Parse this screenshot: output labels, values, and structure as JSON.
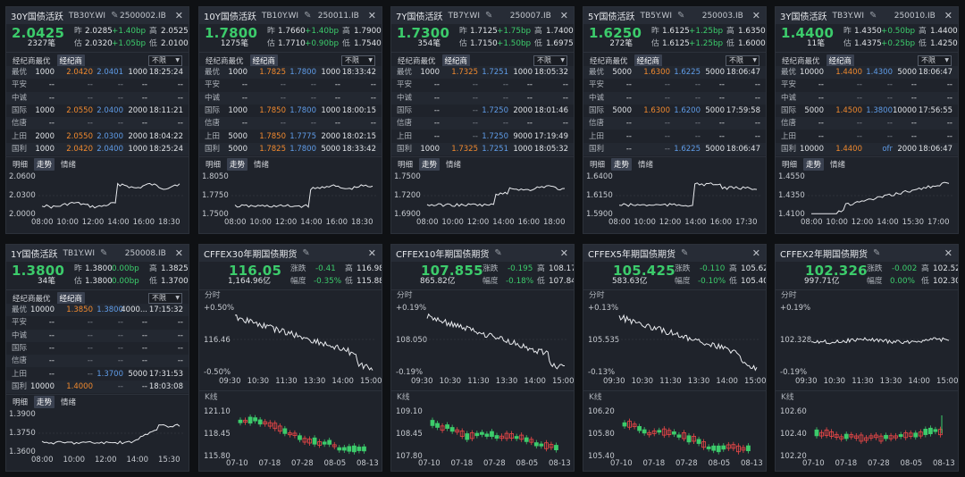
{
  "panels": [
    {
      "type": "bond",
      "name": "30Y国债活跃",
      "code": "TB30Y.WI",
      "ib": "2500002.IB",
      "price": "2.0425",
      "stats": [
        {
          "label": "昨",
          "value": "2.0285",
          "change": "+1.40bp",
          "hl": "高",
          "hv": "2.0525"
        },
        {
          "label": "",
          "value": "",
          "change": "",
          "hl": "",
          "hv": ""
        }
      ],
      "line2": {
        "count": "2327笔",
        "est_label": "估",
        "est": "2.0320",
        "chg": "+1.05bp",
        "low_label": "低",
        "low": "2.0100"
      },
      "broker_tabs": [
        "经纪商最优",
        "经纪商"
      ],
      "filter": "不限",
      "rows": [
        {
          "name": "最优",
          "v1": "1000",
          "p1": "2.0420",
          "p2": "2.0401",
          "v2": "1000",
          "time": "18:25:24",
          "c1": "o",
          "c2": "b"
        },
        {
          "name": "平安",
          "v1": "--",
          "p1": "--",
          "p2": "--",
          "v2": "--",
          "time": "--",
          "c1": "o",
          "c2": "b"
        },
        {
          "name": "中诚",
          "v1": "--",
          "p1": "--",
          "p2": "--",
          "v2": "--",
          "time": "--",
          "c1": "o",
          "c2": "b"
        },
        {
          "name": "国际",
          "v1": "1000",
          "p1": "2.0550",
          "p2": "2.0400",
          "v2": "2000",
          "time": "18:11:21",
          "c1": "o",
          "c2": "b"
        },
        {
          "name": "信唐",
          "v1": "--",
          "p1": "--",
          "p2": "--",
          "v2": "--",
          "time": "--",
          "c1": "o",
          "c2": "b"
        },
        {
          "name": "上田",
          "v1": "2000",
          "p1": "2.0550",
          "p2": "2.0300",
          "v2": "2000",
          "time": "18:04:22",
          "c1": "o",
          "c2": "b"
        },
        {
          "name": "国利",
          "v1": "1000",
          "p1": "2.0420",
          "p2": "2.0400",
          "v2": "1000",
          "time": "18:25:24",
          "c1": "o",
          "c2": "b"
        }
      ],
      "chart_tabs": [
        "明细",
        "走势",
        "情绪"
      ],
      "y_ticks": [
        "2.0600",
        "2.0300",
        "2.0000"
      ],
      "x_ticks": [
        "08:00",
        "10:00",
        "12:00",
        "14:00",
        "16:00",
        "18:30"
      ]
    },
    {
      "type": "bond",
      "name": "10Y国债活跃",
      "code": "TB10Y.WI",
      "ib": "250011.IB",
      "price": "1.7800",
      "stats": [
        {
          "label": "昨",
          "value": "1.7660",
          "change": "+1.40bp",
          "hl": "高",
          "hv": "1.7900"
        }
      ],
      "line2": {
        "count": "1275笔",
        "est_label": "估",
        "est": "1.7710",
        "chg": "+0.90bp",
        "low_label": "低",
        "low": "1.7540"
      },
      "broker_tabs": [
        "经纪商最优",
        "经纪商"
      ],
      "filter": "不限",
      "rows": [
        {
          "name": "最优",
          "v1": "1000",
          "p1": "1.7825",
          "p2": "1.7800",
          "v2": "1000",
          "time": "18:33:42"
        },
        {
          "name": "平安",
          "v1": "--",
          "p1": "--",
          "p2": "--",
          "v2": "--",
          "time": "--"
        },
        {
          "name": "中诚",
          "v1": "--",
          "p1": "--",
          "p2": "--",
          "v2": "--",
          "time": "--"
        },
        {
          "name": "国际",
          "v1": "1000",
          "p1": "1.7850",
          "p2": "1.7800",
          "v2": "1000",
          "time": "18:00:15"
        },
        {
          "name": "信唐",
          "v1": "--",
          "p1": "--",
          "p2": "--",
          "v2": "--",
          "time": "--"
        },
        {
          "name": "上田",
          "v1": "5000",
          "p1": "1.7850",
          "p2": "1.7775",
          "v2": "2000",
          "time": "18:02:15"
        },
        {
          "name": "国利",
          "v1": "5000",
          "p1": "1.7825",
          "p2": "1.7800",
          "v2": "5000",
          "time": "18:33:42"
        }
      ],
      "chart_tabs": [
        "明细",
        "走势",
        "情绪"
      ],
      "y_ticks": [
        "1.8050",
        "1.7750",
        "1.7500"
      ],
      "x_ticks": [
        "08:00",
        "10:00",
        "12:00",
        "14:00",
        "16:00",
        "18:30"
      ]
    },
    {
      "type": "bond",
      "name": "7Y国债活跃",
      "code": "TB7Y.WI",
      "ib": "250007.IB",
      "price": "1.7300",
      "stats": [
        {
          "label": "昨",
          "value": "1.7125",
          "change": "+1.75bp",
          "hl": "高",
          "hv": "1.7400"
        }
      ],
      "line2": {
        "count": "354笔",
        "est_label": "估",
        "est": "1.7150",
        "chg": "+1.50bp",
        "low_label": "低",
        "low": "1.6975"
      },
      "broker_tabs": [
        "经纪商最优",
        "经纪商"
      ],
      "filter": "不限",
      "rows": [
        {
          "name": "最优",
          "v1": "1000",
          "p1": "1.7325",
          "p2": "1.7251",
          "v2": "1000",
          "time": "18:05:32"
        },
        {
          "name": "平安",
          "v1": "--",
          "p1": "--",
          "p2": "--",
          "v2": "--",
          "time": "--"
        },
        {
          "name": "中诚",
          "v1": "--",
          "p1": "--",
          "p2": "--",
          "v2": "--",
          "time": "--"
        },
        {
          "name": "国际",
          "v1": "--",
          "p1": "--",
          "p2": "1.7250",
          "v2": "2000",
          "time": "18:01:46"
        },
        {
          "name": "信唐",
          "v1": "--",
          "p1": "--",
          "p2": "--",
          "v2": "--",
          "time": "--"
        },
        {
          "name": "上田",
          "v1": "--",
          "p1": "--",
          "p2": "1.7250",
          "v2": "9000",
          "time": "17:19:49"
        },
        {
          "name": "国利",
          "v1": "1000",
          "p1": "1.7325",
          "p2": "1.7251",
          "v2": "1000",
          "time": "18:05:32"
        }
      ],
      "chart_tabs": [
        "明细",
        "走势",
        "情绪"
      ],
      "y_ticks": [
        "1.7500",
        "1.7200",
        "1.6900"
      ],
      "x_ticks": [
        "08:00",
        "10:00",
        "12:00",
        "14:00",
        "16:00",
        "18:00"
      ]
    },
    {
      "type": "bond",
      "name": "5Y国债活跃",
      "code": "TB5Y.WI",
      "ib": "250003.IB",
      "price": "1.6250",
      "stats": [
        {
          "label": "昨",
          "value": "1.6125",
          "change": "+1.25bp",
          "hl": "高",
          "hv": "1.6350"
        }
      ],
      "line2": {
        "count": "272笔",
        "est_label": "估",
        "est": "1.6125",
        "chg": "+1.25bp",
        "low_label": "低",
        "low": "1.6000"
      },
      "broker_tabs": [
        "经纪商最优",
        "经纪商"
      ],
      "filter": "不限",
      "rows": [
        {
          "name": "最优",
          "v1": "5000",
          "p1": "1.6300",
          "p2": "1.6225",
          "v2": "5000",
          "time": "18:06:47"
        },
        {
          "name": "平安",
          "v1": "--",
          "p1": "--",
          "p2": "--",
          "v2": "--",
          "time": "--"
        },
        {
          "name": "中诚",
          "v1": "--",
          "p1": "--",
          "p2": "--",
          "v2": "--",
          "time": "--"
        },
        {
          "name": "国际",
          "v1": "5000",
          "p1": "1.6300",
          "p2": "1.6200",
          "v2": "5000",
          "time": "17:59:58"
        },
        {
          "name": "信唐",
          "v1": "--",
          "p1": "--",
          "p2": "--",
          "v2": "--",
          "time": "--"
        },
        {
          "name": "上田",
          "v1": "--",
          "p1": "--",
          "p2": "--",
          "v2": "--",
          "time": "--"
        },
        {
          "name": "国利",
          "v1": "--",
          "p1": "--",
          "p2": "1.6225",
          "v2": "5000",
          "time": "18:06:47"
        }
      ],
      "chart_tabs": [
        "明细",
        "走势",
        "情绪"
      ],
      "y_ticks": [
        "1.6400",
        "1.6150",
        "1.5900"
      ],
      "x_ticks": [
        "08:00",
        "10:00",
        "12:00",
        "14:00",
        "16:00",
        "17:30"
      ]
    },
    {
      "type": "bond",
      "name": "3Y国债活跃",
      "code": "TB3Y.WI",
      "ib": "250010.IB",
      "price": "1.4400",
      "stats": [
        {
          "label": "昨",
          "value": "1.4350",
          "change": "+0.50bp",
          "hl": "高",
          "hv": "1.4400"
        }
      ],
      "line2": {
        "count": "11笔",
        "est_label": "估",
        "est": "1.4375",
        "chg": "+0.25bp",
        "low_label": "低",
        "low": "1.4250"
      },
      "broker_tabs": [
        "经纪商最优",
        "经纪商"
      ],
      "filter": "不限",
      "rows": [
        {
          "name": "最优",
          "v1": "10000",
          "p1": "1.4400",
          "p2": "1.4300",
          "v2": "5000",
          "time": "18:06:47"
        },
        {
          "name": "平安",
          "v1": "--",
          "p1": "--",
          "p2": "--",
          "v2": "--",
          "time": "--"
        },
        {
          "name": "中诚",
          "v1": "--",
          "p1": "--",
          "p2": "--",
          "v2": "--",
          "time": "--"
        },
        {
          "name": "国际",
          "v1": "5000",
          "p1": "1.4500",
          "p2": "1.3800",
          "v2": "10000",
          "time": "17:56:55"
        },
        {
          "name": "信唐",
          "v1": "--",
          "p1": "--",
          "p2": "--",
          "v2": "--",
          "time": "--"
        },
        {
          "name": "上田",
          "v1": "--",
          "p1": "--",
          "p2": "--",
          "v2": "--",
          "time": "--"
        },
        {
          "name": "国利",
          "v1": "10000",
          "p1": "1.4400",
          "p2": "ofr",
          "v2": "2000",
          "time": "18:06:47"
        }
      ],
      "chart_tabs": [
        "明细",
        "走势",
        "情绪"
      ],
      "y_ticks": [
        "1.4550",
        "1.4350",
        "1.4100"
      ],
      "x_ticks": [
        "08:00",
        "10:00",
        "12:00",
        "14:00",
        "15:30",
        "17:00"
      ]
    },
    {
      "type": "bond",
      "name": "1Y国债活跃",
      "code": "TB1Y.WI",
      "ib": "250008.IB",
      "price": "1.3800",
      "stats": [
        {
          "label": "昨",
          "value": "1.3800",
          "change": "0.00bp",
          "hl": "高",
          "hv": "1.3825"
        }
      ],
      "line2": {
        "count": "34笔",
        "est_label": "估",
        "est": "1.3800",
        "chg": "0.00bp",
        "low_label": "低",
        "low": "1.3700"
      },
      "broker_tabs": [
        "经纪商最优",
        "经纪商"
      ],
      "filter": "不限",
      "rows": [
        {
          "name": "最优",
          "v1": "10000",
          "p1": "1.3850",
          "p2": "1.3800",
          "v2": "4000...",
          "time": "17:15:32"
        },
        {
          "name": "平安",
          "v1": "--",
          "p1": "--",
          "p2": "--",
          "v2": "--",
          "time": "--"
        },
        {
          "name": "中诚",
          "v1": "--",
          "p1": "--",
          "p2": "--",
          "v2": "--",
          "time": "--"
        },
        {
          "name": "国际",
          "v1": "--",
          "p1": "--",
          "p2": "--",
          "v2": "--",
          "time": "--"
        },
        {
          "name": "信唐",
          "v1": "--",
          "p1": "--",
          "p2": "--",
          "v2": "--",
          "time": "--"
        },
        {
          "name": "上田",
          "v1": "--",
          "p1": "--",
          "p2": "1.3700",
          "v2": "5000",
          "time": "17:31:53"
        },
        {
          "name": "国利",
          "v1": "10000",
          "p1": "1.4000",
          "p2": "--",
          "v2": "--",
          "time": "18:03:08"
        }
      ],
      "chart_tabs": [
        "明细",
        "走势",
        "情绪"
      ],
      "y_ticks": [
        "1.3900",
        "1.3750",
        "1.3600"
      ],
      "x_ticks": [
        "08:00",
        "10:00",
        "12:00",
        "14:00",
        "15:30"
      ]
    },
    {
      "type": "future",
      "name": "CFFEX30年期国债期货",
      "price": "116.05",
      "chg_label": "涨跌",
      "chg": "-0.41",
      "high_label": "高",
      "high": "116.98",
      "amount": "1,164.96亿",
      "pct_label": "幅度",
      "pct": "-0.35%",
      "low_label": "低",
      "low": "115.88",
      "fen_label": "分时",
      "fen_y": [
        "+0.50%",
        "116.46",
        "-0.50%"
      ],
      "fen_x": [
        "09:30",
        "10:30",
        "11:30",
        "13:30",
        "14:00",
        "15:00"
      ],
      "k_label": "K线",
      "k_y": [
        "121.10",
        "118.45",
        "115.80"
      ],
      "k_x": [
        "07-10",
        "07-18",
        "07-28",
        "08-05",
        "08-13"
      ]
    },
    {
      "type": "future",
      "name": "CFFEX10年期国债期货",
      "price": "107.855",
      "chg_label": "涨跌",
      "chg": "-0.195",
      "high_label": "高",
      "high": "108.170",
      "amount": "865.82亿",
      "pct_label": "幅度",
      "pct": "-0.18%",
      "low_label": "低",
      "low": "107.840",
      "fen_label": "分时",
      "fen_y": [
        "+0.19%",
        "108.050",
        "-0.19%"
      ],
      "fen_x": [
        "09:30",
        "10:30",
        "11:30",
        "13:30",
        "14:00",
        "15:00"
      ],
      "k_label": "K线",
      "k_y": [
        "109.10",
        "108.45",
        "107.80"
      ],
      "k_x": [
        "07-10",
        "07-18",
        "07-28",
        "08-05",
        "08-13"
      ]
    },
    {
      "type": "future",
      "name": "CFFEX5年期国债期货",
      "price": "105.425",
      "chg_label": "涨跌",
      "chg": "-0.110",
      "high_label": "高",
      "high": "105.620",
      "amount": "583.63亿",
      "pct_label": "幅度",
      "pct": "-0.10%",
      "low_label": "低",
      "low": "105.400",
      "fen_label": "分时",
      "fen_y": [
        "+0.13%",
        "105.535",
        "-0.13%"
      ],
      "fen_x": [
        "09:30",
        "10:30",
        "11:30",
        "13:30",
        "14:00",
        "15:00"
      ],
      "k_label": "K线",
      "k_y": [
        "106.20",
        "105.80",
        "105.40"
      ],
      "k_x": [
        "07-10",
        "07-18",
        "07-28",
        "08-05",
        "08-13"
      ]
    },
    {
      "type": "future",
      "name": "CFFEX2年期国债期货",
      "price": "102.326",
      "chg_label": "涨跌",
      "chg": "-0.002",
      "high_label": "高",
      "high": "102.520",
      "amount": "997.71亿",
      "pct_label": "幅度",
      "pct": "0.00%",
      "low_label": "低",
      "low": "102.308",
      "fen_label": "分时",
      "fen_y": [
        "+0.19%",
        "102.328",
        "-0.19%"
      ],
      "fen_x": [
        "09:30",
        "10:30",
        "11:30",
        "13:30",
        "14:00",
        "15:00"
      ],
      "k_label": "K线",
      "k_y": [
        "102.60",
        "102.40",
        "102.20"
      ],
      "k_x": [
        "07-10",
        "07-18",
        "07-28",
        "08-05",
        "08-13"
      ]
    }
  ],
  "colors": {
    "up": "#ee4848",
    "down": "#3ccb6b",
    "bid": "#f0892e",
    "ask": "#5f9ce8",
    "line": "#e8eaee",
    "panel": "#1f232b"
  },
  "icons": {
    "edit": "pencil-icon",
    "close": "close-icon",
    "dropdown": "chevron-down-icon"
  }
}
